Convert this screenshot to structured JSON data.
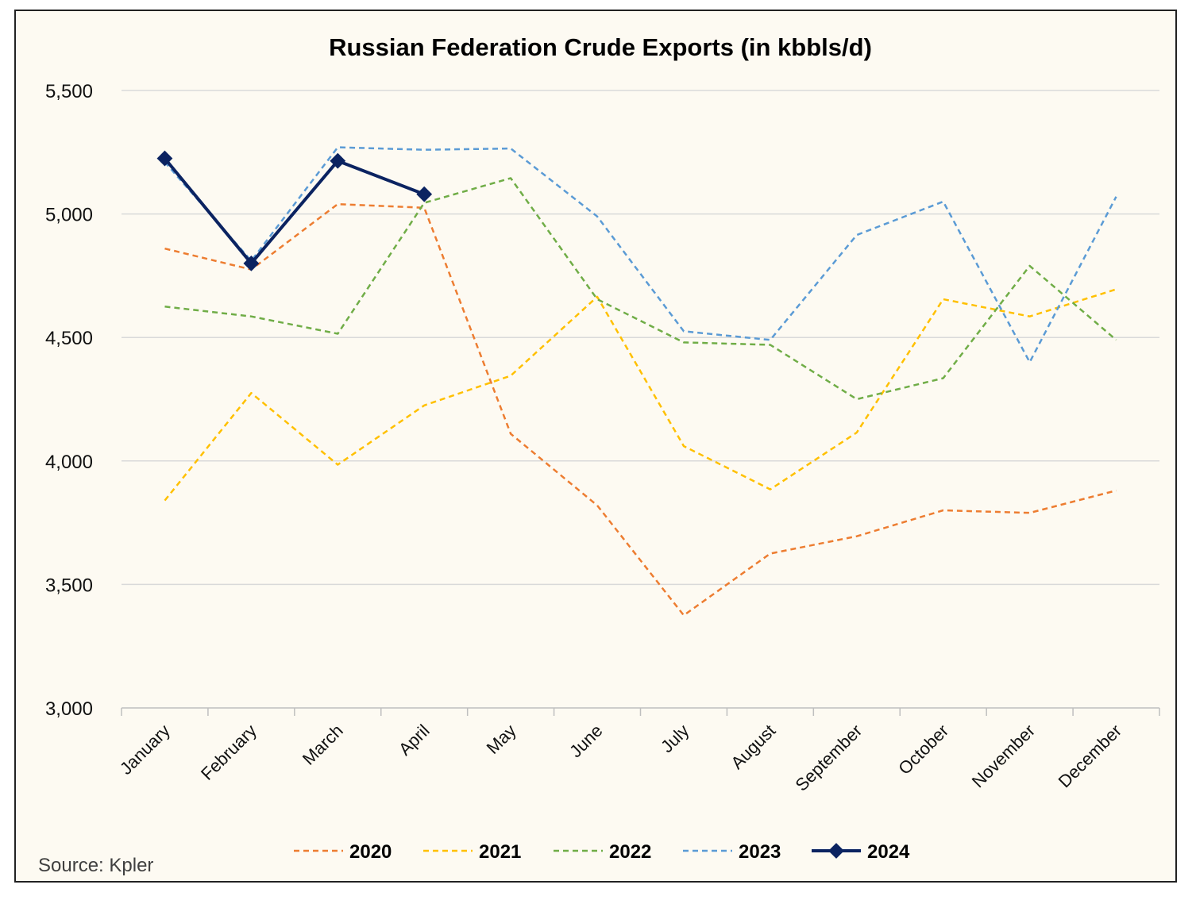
{
  "chart_data": {
    "type": "line",
    "title": "Russian Federation Crude Exports (in kbbls/d)",
    "source": "Source: Kpler",
    "categories": [
      "January",
      "February",
      "March",
      "April",
      "May",
      "June",
      "July",
      "August",
      "September",
      "October",
      "November",
      "December"
    ],
    "ylim": [
      3000,
      5500
    ],
    "yticks": [
      3000,
      3500,
      4000,
      4500,
      5000,
      5500
    ],
    "ytick_labels": [
      "3,000",
      "3,500",
      "4,000",
      "4,500",
      "5,000",
      "5,500"
    ],
    "grid": "horizontal",
    "legend_position": "bottom",
    "series": [
      {
        "name": "2020",
        "color": "#ed7d31",
        "style": "dashed",
        "values": [
          4860,
          4775,
          5040,
          5025,
          4110,
          3820,
          3375,
          3625,
          3695,
          3800,
          3790,
          3880
        ]
      },
      {
        "name": "2021",
        "color": "#ffc000",
        "style": "dashed",
        "values": [
          3840,
          4275,
          3985,
          4225,
          4345,
          4665,
          4060,
          3885,
          4115,
          4655,
          4585,
          4695
        ]
      },
      {
        "name": "2022",
        "color": "#70ad47",
        "style": "dashed",
        "values": [
          4625,
          4585,
          4515,
          5045,
          5145,
          4655,
          4480,
          4470,
          4250,
          4335,
          4790,
          4490
        ]
      },
      {
        "name": "2023",
        "color": "#5b9bd5",
        "style": "dashed",
        "values": [
          5210,
          4810,
          5270,
          5260,
          5265,
          4990,
          4525,
          4490,
          4915,
          5050,
          4400,
          5070
        ]
      },
      {
        "name": "2024",
        "color": "#0b2361",
        "style": "solid-markers",
        "values": [
          5225,
          4800,
          5215,
          5080,
          null,
          null,
          null,
          null,
          null,
          null,
          null,
          null
        ]
      }
    ]
  }
}
